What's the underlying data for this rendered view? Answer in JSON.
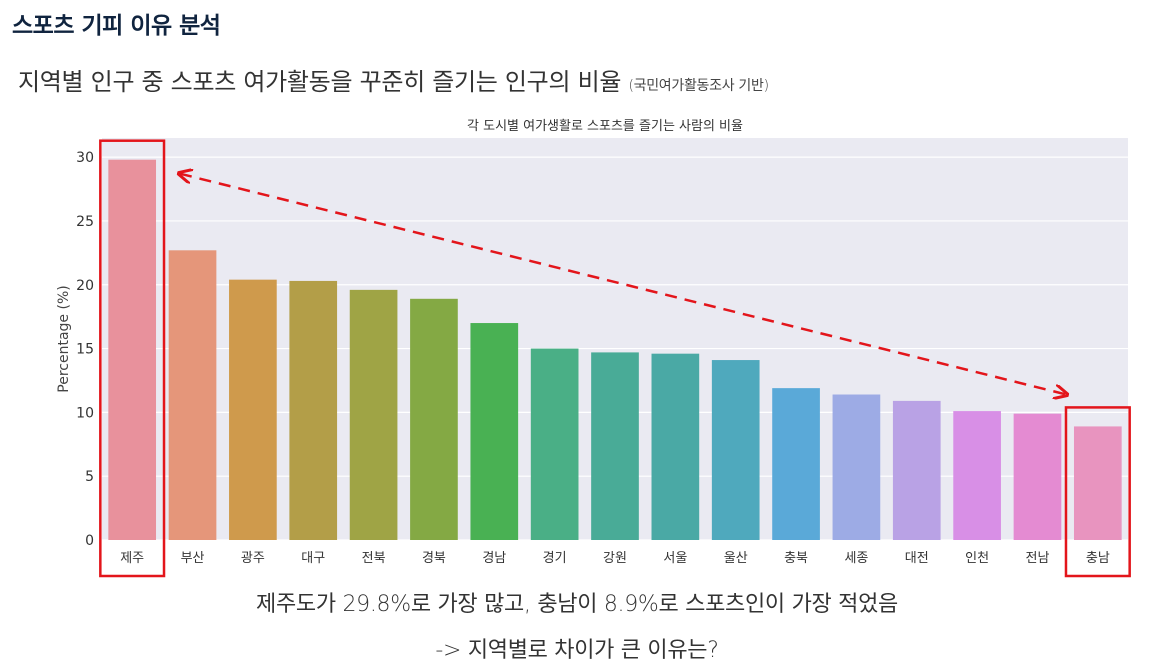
{
  "header": {
    "title": "스포츠 기피 이유 분석",
    "subtitle": "지역별 인구 중 스포츠 여가활동을 꾸준히 즐기는 인구의 비율",
    "subtitle_note": "(국민여가활동조사 기반)"
  },
  "conclusion": {
    "line1": "제주도가 29.8%로 가장 많고, 충남이 8.9%로 스포츠인이 가장 적었음",
    "line2": "-> 지역별로 차이가 큰 이유는?"
  },
  "colors": {
    "plot_background": "#eaeaf2",
    "highlight_box": "#e3151b",
    "arrow": "#e3151b",
    "bars": [
      "#e8919c",
      "#e5967a",
      "#cf9a4c",
      "#b39e48",
      "#9fa445",
      "#84a944",
      "#49b153",
      "#4aaf86",
      "#49ab97",
      "#4aa9a5",
      "#4fa9bd",
      "#5aa9d8",
      "#9dabe5",
      "#b9a2e5",
      "#d88fe6",
      "#e48bd2",
      "#e894bf"
    ]
  },
  "chart_data": {
    "type": "bar",
    "title": "각 도시별 여가생활로 스포츠를 즐기는 사람의 비율",
    "xlabel": "",
    "ylabel": "Percentage (%)",
    "ylim": [
      0,
      31.5
    ],
    "yticks": [
      0,
      5,
      10,
      15,
      20,
      25,
      30
    ],
    "grid": true,
    "categories": [
      "제주",
      "부산",
      "광주",
      "대구",
      "전북",
      "경북",
      "경남",
      "경기",
      "강원",
      "서울",
      "울산",
      "충북",
      "세종",
      "대전",
      "인천",
      "전남",
      "충남"
    ],
    "values": [
      29.8,
      22.7,
      20.4,
      20.3,
      19.6,
      18.9,
      17.0,
      15.0,
      14.7,
      14.6,
      14.1,
      11.9,
      11.4,
      10.9,
      10.1,
      9.9,
      8.9
    ],
    "highlighted": [
      "제주",
      "충남"
    ]
  }
}
